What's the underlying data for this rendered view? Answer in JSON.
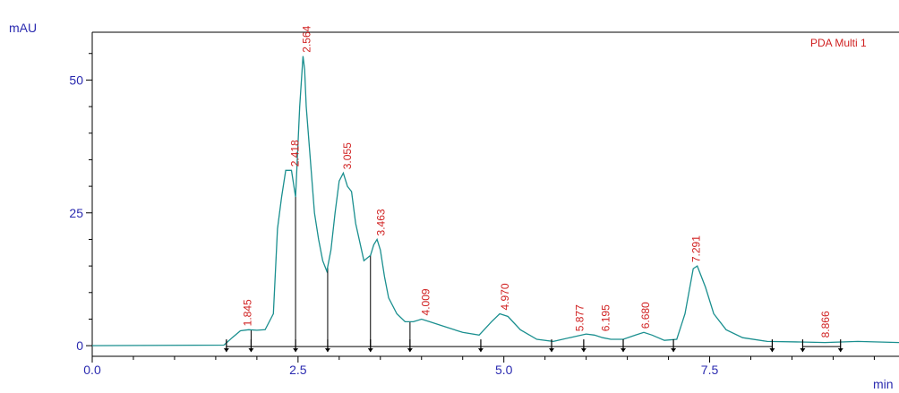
{
  "chart_data": {
    "type": "line",
    "title": "",
    "ylabel": "mAU",
    "xlabel": "min",
    "detector_label": "PDA Multi 1",
    "xlim": [
      0,
      9.8
    ],
    "ylim": [
      -2,
      59
    ],
    "x_ticks": [
      0.0,
      2.5,
      5.0,
      7.5
    ],
    "x_tick_labels": [
      "0.0",
      "2.5",
      "5.0",
      "7.5"
    ],
    "y_ticks": [
      0,
      25,
      50
    ],
    "y_tick_labels": [
      "0",
      "25",
      "50"
    ],
    "colors": {
      "trace": "#1a8f8f",
      "axis": "#000000",
      "labels": "#d02020",
      "axis_text": "#2b2bb0"
    },
    "series": [
      {
        "values_x": [
          0.0,
          1.6,
          1.7,
          1.8,
          1.9,
          2.0,
          2.1,
          2.2,
          2.25,
          2.3,
          2.35,
          2.42,
          2.47,
          2.52,
          2.56,
          2.58,
          2.6,
          2.65,
          2.7,
          2.75,
          2.8,
          2.85,
          2.9,
          2.95,
          3.0,
          3.05,
          3.1,
          3.15,
          3.2,
          3.3,
          3.38,
          3.42,
          3.46,
          3.5,
          3.55,
          3.6,
          3.7,
          3.8,
          3.9,
          4.0,
          4.1,
          4.3,
          4.5,
          4.7,
          4.85,
          4.95,
          5.05,
          5.2,
          5.4,
          5.6,
          5.8,
          6.0,
          6.1,
          6.2,
          6.3,
          6.45,
          6.6,
          6.7,
          6.8,
          6.95,
          7.1,
          7.2,
          7.3,
          7.35,
          7.45,
          7.55,
          7.7,
          7.9,
          8.2,
          8.6,
          8.9,
          9.3,
          9.8
        ],
        "values_y": [
          0,
          0.1,
          1.5,
          2.8,
          3.0,
          2.9,
          3.0,
          6.0,
          22,
          28,
          33,
          33,
          28,
          45,
          54.5,
          52,
          45,
          35,
          25,
          20,
          16,
          14,
          18,
          25,
          31,
          32.5,
          30,
          29,
          23,
          16,
          17,
          19,
          20,
          18,
          13,
          9,
          6,
          4.5,
          4.5,
          5.0,
          4.5,
          3.5,
          2.5,
          2.0,
          4.5,
          6.0,
          5.5,
          3.0,
          1.2,
          0.8,
          1.5,
          2.2,
          2.0,
          1.5,
          1.2,
          1.2,
          2.0,
          2.5,
          2.0,
          1.0,
          1.2,
          6.0,
          14.5,
          15,
          11,
          6.0,
          3.0,
          1.5,
          0.8,
          0.7,
          0.6,
          0.8,
          0.6
        ]
      }
    ],
    "peaks": [
      {
        "rt": 1.845,
        "label": "1.845",
        "y": 3.0
      },
      {
        "rt": 2.418,
        "label": "2.418",
        "y": 33
      },
      {
        "rt": 2.564,
        "label": "2.564",
        "y": 54.5
      },
      {
        "rt": 3.055,
        "label": "3.055",
        "y": 32.5
      },
      {
        "rt": 3.463,
        "label": "3.463",
        "y": 20
      },
      {
        "rt": 4.009,
        "label": "4.009",
        "y": 5.0
      },
      {
        "rt": 4.97,
        "label": "4.970",
        "y": 6.0
      },
      {
        "rt": 5.877,
        "label": "5.877",
        "y": 2.0
      },
      {
        "rt": 6.195,
        "label": "6.195",
        "y": 2.0
      },
      {
        "rt": 6.68,
        "label": "6.680",
        "y": 2.5
      },
      {
        "rt": 7.291,
        "label": "7.291",
        "y": 15
      },
      {
        "rt": 8.866,
        "label": "8.866",
        "y": 0.8
      }
    ],
    "integration_marks": [
      1.63,
      1.93,
      2.47,
      2.86,
      3.38,
      3.86,
      4.72,
      5.58,
      5.97,
      6.45,
      7.06,
      8.26,
      8.63,
      9.09
    ],
    "baseline_segments": [
      [
        1.63,
        1.93
      ],
      [
        1.93,
        2.47
      ],
      [
        2.47,
        2.86
      ],
      [
        2.86,
        3.38
      ],
      [
        3.38,
        3.86
      ],
      [
        3.86,
        4.72
      ],
      [
        4.72,
        5.58
      ],
      [
        5.58,
        5.97
      ],
      [
        5.97,
        6.45
      ],
      [
        6.45,
        7.06
      ],
      [
        7.06,
        8.26
      ],
      [
        8.63,
        9.09
      ]
    ],
    "drop_lines": [
      1.93,
      2.47,
      2.86,
      3.38,
      3.86
    ]
  }
}
